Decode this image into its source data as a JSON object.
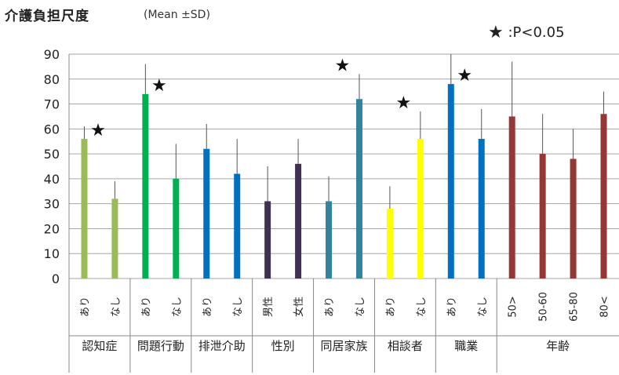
{
  "chart_data": {
    "type": "bar",
    "title": "介護負担尺度",
    "subtitle": "(Mean ±SD)",
    "legend_text": ":P<0.05",
    "legend_symbol": "★",
    "ylim": [
      0,
      90
    ],
    "yticks": [
      0,
      10,
      20,
      30,
      40,
      50,
      60,
      70,
      80,
      90
    ],
    "grid": true,
    "groups": [
      {
        "label": "認知症",
        "bars": [
          {
            "label": "あり",
            "value": 56,
            "sd": 5,
            "color": "#9bbb59"
          },
          {
            "label": "なし",
            "value": 32,
            "sd": 7,
            "color": "#9bbb59"
          }
        ],
        "sig": true
      },
      {
        "label": "問題行動",
        "bars": [
          {
            "label": "あり",
            "value": 74,
            "sd": 12,
            "color": "#00b050"
          },
          {
            "label": "なし",
            "value": 40,
            "sd": 14,
            "color": "#00b050"
          }
        ],
        "sig": true
      },
      {
        "label": "排泄介助",
        "bars": [
          {
            "label": "あり",
            "value": 52,
            "sd": 10,
            "color": "#0070c0"
          },
          {
            "label": "なし",
            "value": 42,
            "sd": 14,
            "color": "#0070c0"
          }
        ],
        "sig": false
      },
      {
        "label": "性別",
        "bars": [
          {
            "label": "男性",
            "value": 31,
            "sd": 14,
            "color": "#403152"
          },
          {
            "label": "女性",
            "value": 46,
            "sd": 10,
            "color": "#403152"
          }
        ],
        "sig": false
      },
      {
        "label": "同居家族",
        "bars": [
          {
            "label": "あり",
            "value": 31,
            "sd": 10,
            "color": "#31849b"
          },
          {
            "label": "なし",
            "value": 72,
            "sd": 10,
            "color": "#31849b"
          }
        ],
        "sig": true
      },
      {
        "label": "相談者",
        "bars": [
          {
            "label": "あり",
            "value": 28,
            "sd": 9,
            "color": "#ffff00"
          },
          {
            "label": "なし",
            "value": 56,
            "sd": 11,
            "color": "#ffff00"
          }
        ],
        "sig": true
      },
      {
        "label": "職業",
        "bars": [
          {
            "label": "あり",
            "value": 78,
            "sd": 12,
            "color": "#0070c0"
          },
          {
            "label": "なし",
            "value": 56,
            "sd": 12,
            "color": "#0070c0"
          }
        ],
        "sig": true
      },
      {
        "label": "年齢",
        "bars": [
          {
            "label": "50>",
            "value": 65,
            "sd": 22,
            "color": "#953735"
          },
          {
            "label": "50-60",
            "value": 50,
            "sd": 16,
            "color": "#953735"
          },
          {
            "label": "65-80",
            "value": 48,
            "sd": 12,
            "color": "#953735"
          },
          {
            "label": "80<",
            "value": 66,
            "sd": 9,
            "color": "#953735"
          }
        ],
        "sig": false
      }
    ]
  }
}
